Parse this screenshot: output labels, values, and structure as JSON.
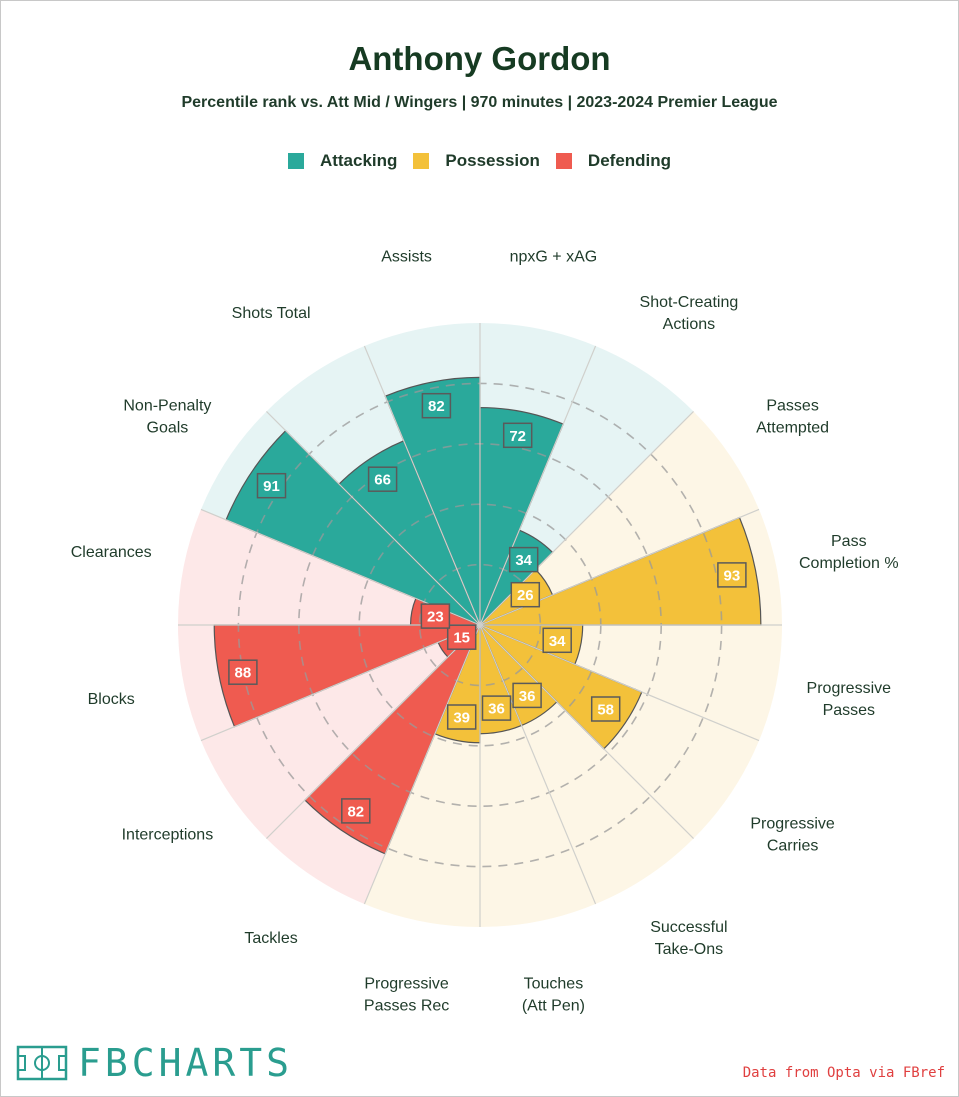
{
  "header": {
    "title": "Anthony Gordon",
    "subtitle": "Percentile rank vs. Att Mid / Wingers | 970 minutes | 2023-2024 Premier League"
  },
  "colors": {
    "attacking": "#2aa99b",
    "possession": "#f3c13a",
    "defending": "#ef5b50",
    "bg_attacking": "#e6f4f4",
    "bg_possession": "#fdf6e6",
    "bg_defending": "#fde8e8"
  },
  "legend": [
    {
      "label": "Attacking",
      "color": "#2aa99b"
    },
    {
      "label": "Possession",
      "color": "#f3c13a"
    },
    {
      "label": "Defending",
      "color": "#ef5b50"
    }
  ],
  "chart_data": {
    "type": "radar-bar",
    "rlim": [
      0,
      100
    ],
    "grid": true,
    "legend_position": "top-center",
    "categories": [
      {
        "label": "npxG + xAG",
        "value": 72,
        "group": "Attacking"
      },
      {
        "label": "Shot-Creating Actions",
        "value": 34,
        "group": "Attacking"
      },
      {
        "label": "Passes Attempted",
        "value": 26,
        "group": "Possession"
      },
      {
        "label": "Pass Completion %",
        "value": 93,
        "group": "Possession"
      },
      {
        "label": "Progressive Passes",
        "value": 34,
        "group": "Possession"
      },
      {
        "label": "Progressive Carries",
        "value": 58,
        "group": "Possession"
      },
      {
        "label": "Successful Take-Ons",
        "value": 36,
        "group": "Possession"
      },
      {
        "label": "Touches (Att Pen)",
        "value": 36,
        "group": "Possession"
      },
      {
        "label": "Progressive Passes Rec",
        "value": 39,
        "group": "Possession"
      },
      {
        "label": "Tackles",
        "value": 82,
        "group": "Defending"
      },
      {
        "label": "Interceptions",
        "value": 15,
        "group": "Defending"
      },
      {
        "label": "Blocks",
        "value": 88,
        "group": "Defending"
      },
      {
        "label": "Clearances",
        "value": 23,
        "group": "Defending"
      },
      {
        "label": "Non-Penalty Goals",
        "value": 91,
        "group": "Attacking"
      },
      {
        "label": "Shots Total",
        "value": 66,
        "group": "Attacking"
      },
      {
        "label": "Assists",
        "value": 82,
        "group": "Attacking"
      }
    ]
  },
  "footer": {
    "logo_text": "FBCHARTS",
    "source": "Data from Opta via FBref"
  }
}
